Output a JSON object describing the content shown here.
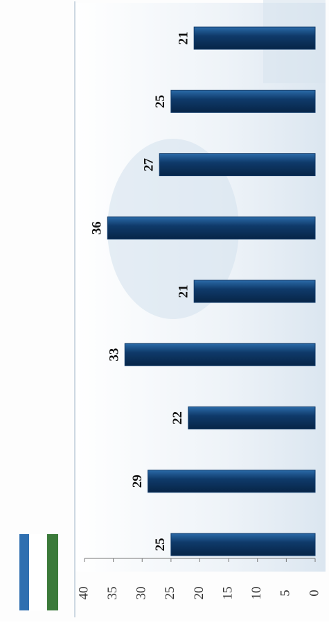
{
  "chart_data": {
    "type": "bar",
    "orientation": "rotated",
    "values": [
      25,
      29,
      22,
      33,
      21,
      36,
      27,
      25,
      21
    ],
    "color": "#0f3a6a",
    "ylim": [
      0,
      40
    ],
    "yticks": [
      0,
      5,
      10,
      15,
      20,
      25,
      30,
      35,
      40
    ]
  }
}
